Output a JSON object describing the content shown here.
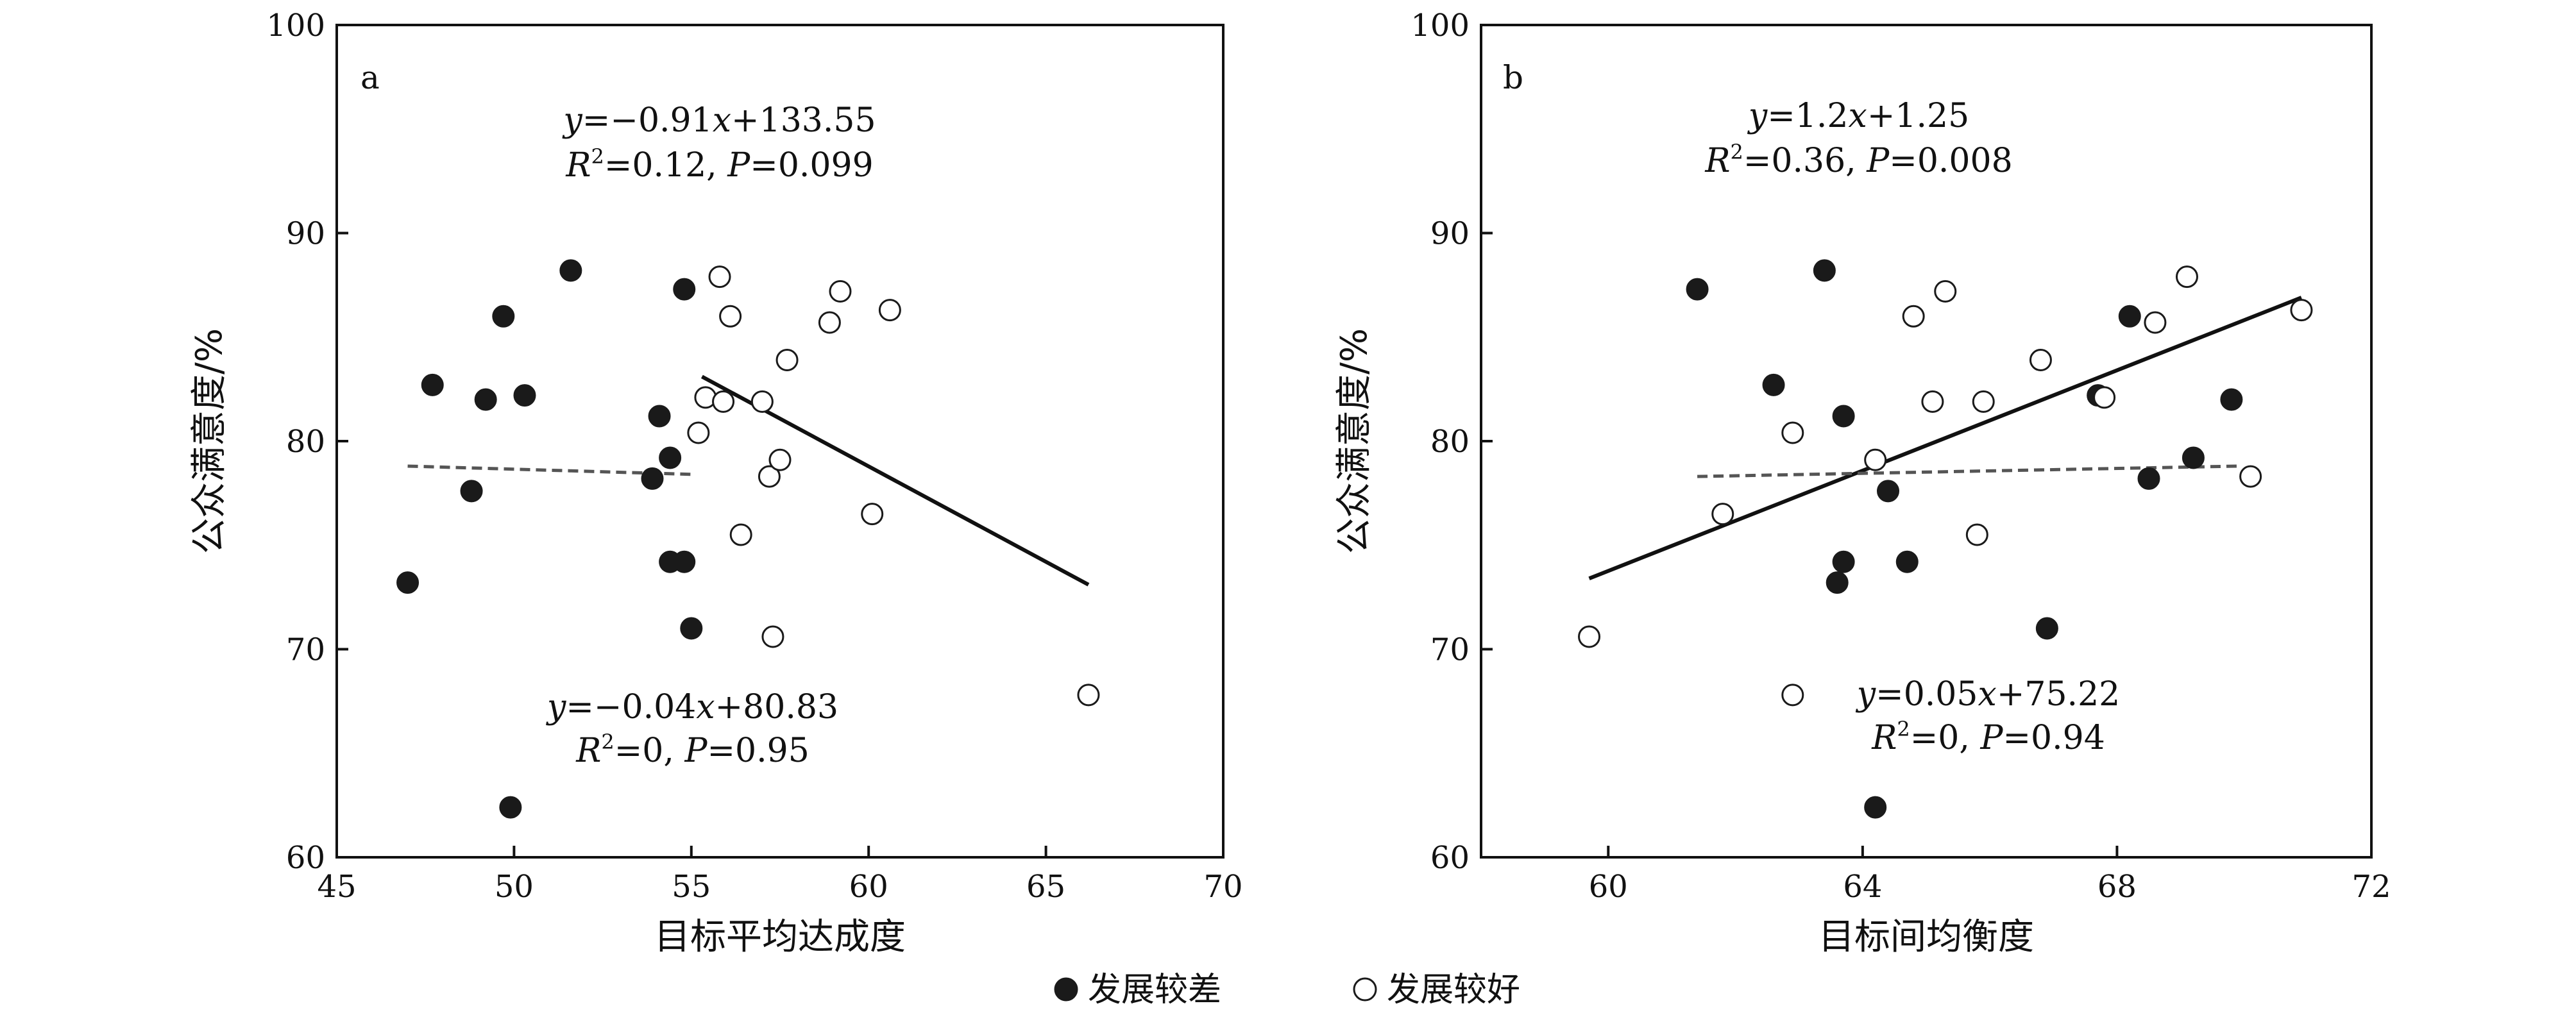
{
  "chart_data": [
    {
      "type": "scatter",
      "panel_label": "a",
      "xlabel": "目标平均达成度",
      "ylabel": "公众满意度/%",
      "xlim": [
        45,
        70
      ],
      "ylim": [
        60,
        100
      ],
      "xticks": [
        "45",
        "50",
        "55",
        "60",
        "65",
        "70"
      ],
      "yticks": [
        "60",
        "70",
        "80",
        "90",
        "100"
      ],
      "grid": false,
      "series": [
        {
          "name": "发展较差",
          "marker": "filled",
          "points": [
            [
              47.0,
              73.2
            ],
            [
              47.7,
              82.7
            ],
            [
              48.8,
              77.6
            ],
            [
              49.2,
              82.0
            ],
            [
              49.7,
              86.0
            ],
            [
              49.9,
              62.4
            ],
            [
              50.3,
              82.2
            ],
            [
              51.6,
              88.2
            ],
            [
              53.9,
              78.2
            ],
            [
              54.1,
              81.2
            ],
            [
              54.4,
              79.2
            ],
            [
              54.4,
              74.2
            ],
            [
              54.8,
              74.2
            ],
            [
              54.8,
              87.3
            ],
            [
              55.0,
              71.0
            ]
          ]
        },
        {
          "name": "发展较好",
          "marker": "open",
          "points": [
            [
              55.2,
              80.4
            ],
            [
              55.4,
              82.1
            ],
            [
              55.8,
              87.9
            ],
            [
              55.9,
              81.9
            ],
            [
              56.1,
              86.0
            ],
            [
              56.4,
              75.5
            ],
            [
              57.0,
              81.9
            ],
            [
              57.2,
              78.3
            ],
            [
              57.3,
              70.6
            ],
            [
              57.5,
              79.1
            ],
            [
              57.7,
              83.9
            ],
            [
              58.9,
              85.7
            ],
            [
              59.2,
              87.2
            ],
            [
              60.1,
              76.5
            ],
            [
              60.6,
              86.3
            ],
            [
              66.2,
              67.8
            ]
          ]
        }
      ],
      "fits": [
        {
          "style": "solid",
          "x": [
            55.3,
            66.2
          ],
          "y": [
            83.1,
            73.1
          ],
          "equation": "y=−0.91x+133.55",
          "stats": "R2=0.12, P=0.099"
        },
        {
          "style": "dashed",
          "x": [
            47.0,
            55.1
          ],
          "y": [
            78.8,
            78.4
          ],
          "equation": "y=−0.04x+80.83",
          "stats": "R2=0, P=0.95"
        }
      ],
      "eq_texts": [
        {
          "v": "y",
          "rest": "=−0.91"
        },
        {
          "v": "x",
          "rest": "+133.55"
        }
      ],
      "stat_texts": {
        "r": "R",
        "sup": "2",
        "r_val": "=0.12, ",
        "p": "P",
        "p_val": "=0.099"
      },
      "eq2_texts": [
        {
          "v": "y",
          "rest": "=−0.04"
        },
        {
          "v": "x",
          "rest": "+80.83"
        }
      ],
      "stat2_texts": {
        "r": "R",
        "sup": "2",
        "r_val": "=0, ",
        "p": "P",
        "p_val": "=0.95"
      }
    },
    {
      "type": "scatter",
      "panel_label": "b",
      "xlabel": "目标间均衡度",
      "ylabel": "公众满意度/%",
      "xlim": [
        58,
        72
      ],
      "ylim": [
        60,
        100
      ],
      "xticks": [
        "60",
        "64",
        "68",
        "72"
      ],
      "yticks": [
        "60",
        "70",
        "80",
        "90",
        "100"
      ],
      "grid": false,
      "series": [
        {
          "name": "发展较差",
          "marker": "filled",
          "points": [
            [
              61.4,
              87.3
            ],
            [
              62.6,
              82.7
            ],
            [
              63.4,
              88.2
            ],
            [
              63.6,
              73.2
            ],
            [
              63.7,
              81.2
            ],
            [
              63.7,
              74.2
            ],
            [
              64.2,
              62.4
            ],
            [
              64.4,
              77.6
            ],
            [
              64.7,
              74.2
            ],
            [
              66.9,
              71.0
            ],
            [
              67.7,
              82.2
            ],
            [
              68.2,
              86.0
            ],
            [
              68.5,
              78.2
            ],
            [
              69.2,
              79.2
            ],
            [
              69.8,
              82.0
            ]
          ]
        },
        {
          "name": "发展较好",
          "marker": "open",
          "points": [
            [
              59.7,
              70.6
            ],
            [
              61.8,
              76.5
            ],
            [
              62.9,
              80.4
            ],
            [
              62.9,
              67.8
            ],
            [
              64.2,
              79.1
            ],
            [
              64.8,
              86.0
            ],
            [
              65.1,
              81.9
            ],
            [
              65.3,
              87.2
            ],
            [
              65.8,
              75.5
            ],
            [
              65.9,
              81.9
            ],
            [
              66.8,
              83.9
            ],
            [
              67.8,
              82.1
            ],
            [
              68.6,
              85.7
            ],
            [
              69.1,
              87.9
            ],
            [
              70.1,
              78.3
            ],
            [
              70.9,
              86.3
            ]
          ]
        }
      ],
      "fits": [
        {
          "style": "solid",
          "x": [
            59.7,
            70.9
          ],
          "y": [
            73.4,
            86.9
          ],
          "equation": "y=1.2x+1.25",
          "stats": "R2=0.36, P=0.008"
        },
        {
          "style": "dashed",
          "x": [
            61.4,
            69.9
          ],
          "y": [
            78.3,
            78.8
          ],
          "equation": "y=0.05x+75.22",
          "stats": "R2=0, P=0.94"
        }
      ],
      "eq_texts": [
        {
          "v": "y",
          "rest": "=1.2"
        },
        {
          "v": "x",
          "rest": "+1.25"
        }
      ],
      "stat_texts": {
        "r": "R",
        "sup": "2",
        "r_val": "=0.36, ",
        "p": "P",
        "p_val": "=0.008"
      },
      "eq2_texts": [
        {
          "v": "y",
          "rest": "=0.05"
        },
        {
          "v": "x",
          "rest": "+75.22"
        }
      ],
      "stat2_texts": {
        "r": "R",
        "sup": "2",
        "r_val": "=0, ",
        "p": "P",
        "p_val": "=0.94"
      }
    }
  ],
  "legend": {
    "placement": "bottom-center",
    "items": [
      {
        "label": "发展较差",
        "marker": "filled"
      },
      {
        "label": "发展较好",
        "marker": "open"
      }
    ]
  }
}
